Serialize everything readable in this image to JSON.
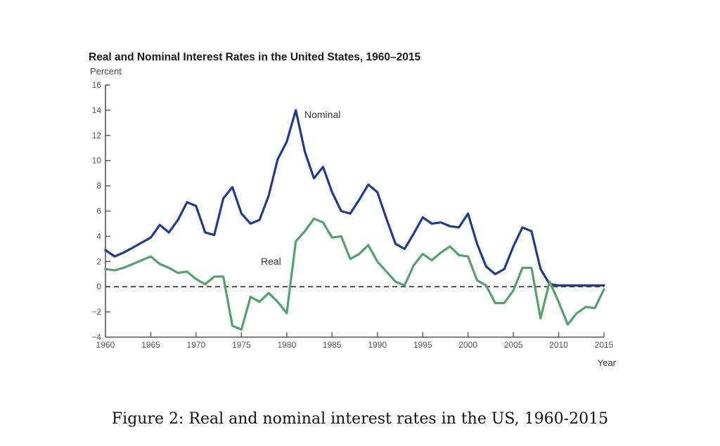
{
  "figure": {
    "caption": "Figure 2: Real and nominal interest rates in the US, 1960-2015"
  },
  "chart_data": {
    "type": "line",
    "title": "Real and Nominal Interest Rates in the United States, 1960–2015",
    "xlabel": "Year",
    "ylabel": "Percent",
    "xlim": [
      1960,
      2015
    ],
    "ylim": [
      -4,
      16
    ],
    "x_ticks": [
      1960,
      1965,
      1970,
      1975,
      1980,
      1985,
      1990,
      1995,
      2000,
      2005,
      2010,
      2015
    ],
    "y_ticks": [
      -4,
      -2,
      0,
      2,
      4,
      6,
      8,
      10,
      12,
      14,
      16
    ],
    "y_tick_labels": [
      "−4",
      "−2",
      "0",
      "2",
      "4",
      "6",
      "8",
      "10",
      "12",
      "14",
      "16"
    ],
    "grid": false,
    "reference_line": {
      "y": 0,
      "style": "dashed",
      "color": "#444444"
    },
    "x": [
      1960,
      1961,
      1962,
      1963,
      1964,
      1965,
      1966,
      1967,
      1968,
      1969,
      1970,
      1971,
      1972,
      1973,
      1974,
      1975,
      1976,
      1977,
      1978,
      1979,
      1980,
      1981,
      1982,
      1983,
      1984,
      1985,
      1986,
      1987,
      1988,
      1989,
      1990,
      1991,
      1992,
      1993,
      1994,
      1995,
      1996,
      1997,
      1998,
      1999,
      2000,
      2001,
      2002,
      2003,
      2004,
      2005,
      2006,
      2007,
      2008,
      2009,
      2010,
      2011,
      2012,
      2013,
      2014,
      2015
    ],
    "series": [
      {
        "name": "Nominal",
        "color": "#1f3a93",
        "label_text": "Nominal",
        "values": [
          2.9,
          2.4,
          2.7,
          3.1,
          3.5,
          3.9,
          4.9,
          4.3,
          5.3,
          6.7,
          6.4,
          4.3,
          4.1,
          7.0,
          7.9,
          5.8,
          5.0,
          5.3,
          7.2,
          10.1,
          11.5,
          14.0,
          10.7,
          8.6,
          9.5,
          7.5,
          6.0,
          5.8,
          6.9,
          8.1,
          7.5,
          5.4,
          3.4,
          3.0,
          4.2,
          5.5,
          5.0,
          5.1,
          4.8,
          4.7,
          5.8,
          3.4,
          1.6,
          1.0,
          1.4,
          3.2,
          4.7,
          4.4,
          1.4,
          0.2,
          0.1,
          0.1,
          0.1,
          0.1,
          0.1,
          0.1
        ]
      },
      {
        "name": "Real",
        "color": "#4fa36b",
        "label_text": "Real",
        "values": [
          1.4,
          1.3,
          1.5,
          1.8,
          2.1,
          2.4,
          1.8,
          1.5,
          1.1,
          1.2,
          0.6,
          0.2,
          0.8,
          0.8,
          -3.1,
          -3.4,
          -0.8,
          -1.2,
          -0.5,
          -1.2,
          -2.1,
          3.6,
          4.4,
          5.4,
          5.1,
          3.9,
          4.0,
          2.2,
          2.6,
          3.3,
          2.0,
          1.2,
          0.4,
          0.1,
          1.7,
          2.6,
          2.1,
          2.7,
          3.2,
          2.5,
          2.4,
          0.5,
          0.1,
          -1.3,
          -1.3,
          -0.3,
          1.5,
          1.5,
          -2.5,
          0.4,
          -1.2,
          -3.0,
          -2.1,
          -1.6,
          -1.7,
          -0.2
        ]
      }
    ]
  }
}
